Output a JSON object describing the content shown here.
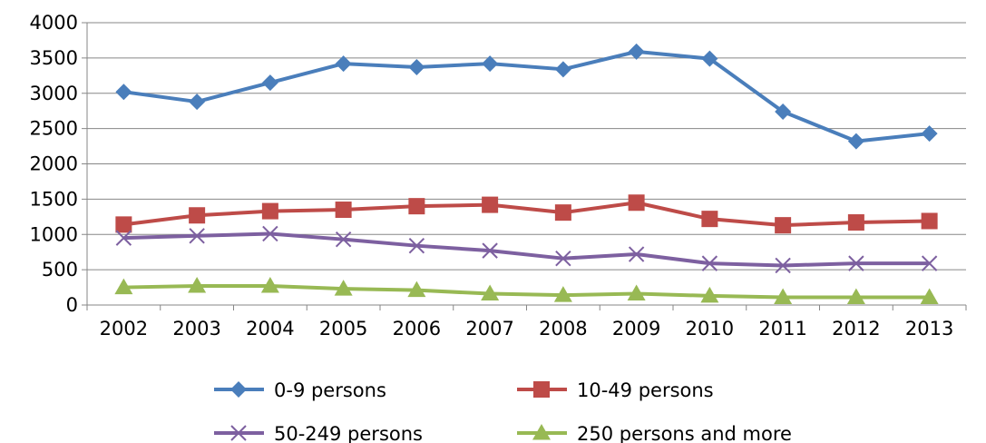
{
  "chart_data": {
    "type": "line",
    "title": "",
    "xlabel": "",
    "ylabel": "",
    "x": [
      "2002",
      "2003",
      "2004",
      "2005",
      "2006",
      "2007",
      "2008",
      "2009",
      "2010",
      "2011",
      "2012",
      "2013"
    ],
    "ylim": [
      0,
      4000
    ],
    "yticks": [
      0,
      500,
      1000,
      1500,
      2000,
      2500,
      3000,
      3500,
      4000
    ],
    "grid": "horizontal",
    "legend_position": "bottom",
    "series": [
      {
        "name": "0-9 persons",
        "color": "#4a7ebb",
        "marker": "diamond",
        "values": [
          3020,
          2880,
          3150,
          3420,
          3370,
          3420,
          3340,
          3590,
          3490,
          2740,
          2320,
          2430
        ]
      },
      {
        "name": "10-49 persons",
        "color": "#be4b48",
        "marker": "square",
        "values": [
          1140,
          1270,
          1330,
          1350,
          1400,
          1420,
          1310,
          1450,
          1220,
          1130,
          1170,
          1190
        ]
      },
      {
        "name": "50-249 persons",
        "color": "#7d60a0",
        "marker": "x",
        "values": [
          950,
          980,
          1010,
          930,
          840,
          770,
          660,
          720,
          590,
          560,
          590,
          590
        ]
      },
      {
        "name": "250 persons and more",
        "color": "#98b954",
        "marker": "triangle",
        "values": [
          250,
          270,
          270,
          230,
          210,
          160,
          140,
          160,
          130,
          110,
          110,
          110
        ]
      }
    ]
  }
}
